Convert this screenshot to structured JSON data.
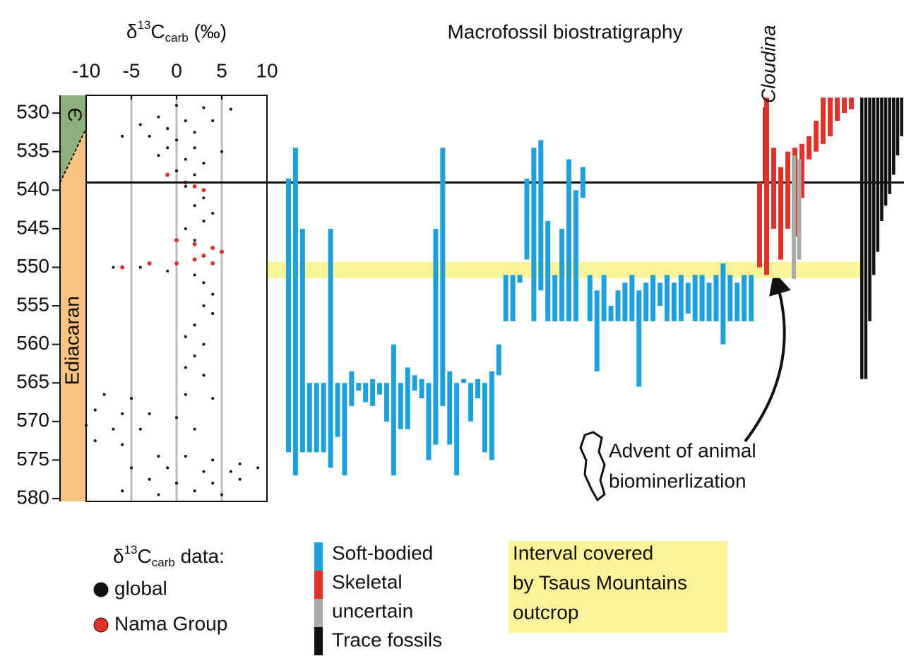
{
  "chart_data": {
    "type": "stratigraphic",
    "title": "Macrofossil biostratigraphy",
    "x_label": {
      "delta": "δ",
      "sup": "13",
      "base": "C",
      "sub": "carb",
      "unit": " (‰)"
    },
    "xlim": [
      -10,
      10
    ],
    "xticks": [
      -10,
      -5,
      0,
      5,
      10
    ],
    "grid_x": [
      -5,
      0,
      5
    ],
    "ylim": [
      527.7,
      580
    ],
    "yticks": [
      530,
      535,
      540,
      545,
      550,
      555,
      560,
      565,
      570,
      575,
      580
    ],
    "periods": [
      {
        "name": "Є",
        "color": "#8fae7e"
      },
      {
        "name": "Ediacaran",
        "color": "#f9c482"
      }
    ],
    "period_boundary": [
      539,
      532
    ],
    "boundary_line": 539,
    "highlight": {
      "range": [
        549.3,
        551.4
      ],
      "color": "#fbf39a",
      "label": [
        "Interval covered",
        "by Tsaus Mountains",
        "outcrop"
      ]
    },
    "scatter_legend_title": {
      "delta": "δ",
      "sup": "13",
      "base": "C",
      "sub": "carb",
      "unit": " data:"
    },
    "series": [
      {
        "name": "global",
        "color": "#111111",
        "points": [
          [
            0,
            529
          ],
          [
            3,
            529.3
          ],
          [
            6,
            529.5
          ],
          [
            -2,
            530.5
          ],
          [
            1,
            531
          ],
          [
            4,
            531
          ],
          [
            -4,
            531.5
          ],
          [
            -1,
            532
          ],
          [
            2,
            532.5
          ],
          [
            -6,
            533
          ],
          [
            -3,
            533
          ],
          [
            0,
            533.5
          ],
          [
            -1,
            534.5
          ],
          [
            2,
            534.5
          ],
          [
            5,
            535
          ],
          [
            -2,
            535.5
          ],
          [
            1,
            536
          ],
          [
            3,
            536.5
          ],
          [
            0,
            537.5
          ],
          [
            2,
            538
          ],
          [
            1,
            539.5
          ],
          [
            3,
            541
          ],
          [
            2,
            542
          ],
          [
            4,
            543
          ],
          [
            3,
            544
          ],
          [
            1,
            545
          ],
          [
            2,
            546.5
          ],
          [
            4,
            547.5
          ],
          [
            -7,
            550
          ],
          [
            -4,
            550
          ],
          [
            -1,
            550.5
          ],
          [
            2,
            551
          ],
          [
            3,
            552
          ],
          [
            4,
            553.5
          ],
          [
            3,
            555
          ],
          [
            4,
            556
          ],
          [
            2,
            557.5
          ],
          [
            1,
            559
          ],
          [
            3,
            560
          ],
          [
            2,
            561.5
          ],
          [
            1,
            563
          ],
          [
            3,
            564
          ],
          [
            -8,
            566.5
          ],
          [
            -5,
            567
          ],
          [
            1,
            566.5
          ],
          [
            4,
            567
          ],
          [
            -9,
            568.5
          ],
          [
            -6,
            569
          ],
          [
            -3,
            569
          ],
          [
            0,
            569.5
          ],
          [
            -10,
            570.5
          ],
          [
            -7,
            571
          ],
          [
            -4,
            571
          ],
          [
            2,
            571
          ],
          [
            -9,
            572.5
          ],
          [
            -6,
            573
          ],
          [
            -2,
            574.5
          ],
          [
            1,
            574.5
          ],
          [
            4,
            575
          ],
          [
            7,
            575.5
          ],
          [
            -5,
            576
          ],
          [
            -1,
            576
          ],
          [
            3,
            576.5
          ],
          [
            6,
            576.5
          ],
          [
            9,
            576
          ],
          [
            -3,
            577.5
          ],
          [
            0,
            578
          ],
          [
            4,
            578
          ],
          [
            7,
            577.5
          ],
          [
            -6,
            579
          ],
          [
            -2,
            579.5
          ],
          [
            2,
            579
          ],
          [
            5,
            579.5
          ]
        ]
      },
      {
        "name": "Nama Group",
        "color": "#e0322a",
        "points": [
          [
            -1,
            538
          ],
          [
            1,
            539
          ],
          [
            2,
            539.5
          ],
          [
            3,
            540
          ],
          [
            0,
            546.5
          ],
          [
            2,
            547
          ],
          [
            4,
            547.5
          ],
          [
            5,
            548
          ],
          [
            3,
            548.5
          ],
          [
            -6,
            550
          ],
          [
            -3,
            549.5
          ],
          [
            0,
            549.5
          ],
          [
            2,
            549
          ],
          [
            4,
            549.5
          ]
        ]
      }
    ],
    "groups": [
      {
        "name": "Soft-bodied",
        "color": "#1ea0dc",
        "ranges": [
          [
            538.5,
            574
          ],
          [
            534.5,
            577
          ],
          [
            545,
            574
          ],
          [
            565,
            574
          ],
          [
            565,
            574
          ],
          [
            565,
            574
          ],
          [
            545,
            576
          ],
          [
            565,
            572
          ],
          [
            565,
            577
          ],
          [
            563.5,
            568
          ],
          [
            565,
            566
          ],
          [
            565,
            567.5
          ],
          [
            564.5,
            568
          ],
          [
            565,
            566.5
          ],
          [
            565,
            570
          ],
          [
            560,
            577
          ],
          [
            565,
            571
          ],
          [
            563,
            571
          ],
          [
            564,
            566
          ],
          [
            564.5,
            567
          ],
          [
            565,
            575
          ],
          [
            545,
            573
          ],
          [
            534.5,
            568
          ],
          [
            563.5,
            573
          ],
          [
            565,
            577
          ],
          [
            564.5,
            565
          ],
          [
            565,
            570
          ],
          [
            564.5,
            567
          ],
          [
            565,
            574
          ],
          [
            563.5,
            575
          ],
          [
            560,
            564
          ],
          [
            551,
            557
          ],
          [
            551,
            557
          ],
          [
            551,
            552
          ],
          [
            538.5,
            549
          ],
          [
            534.5,
            557
          ],
          [
            533.5,
            553
          ],
          [
            544,
            557
          ],
          [
            551,
            557
          ],
          [
            545,
            557
          ],
          [
            536,
            557
          ],
          [
            540,
            557
          ],
          [
            537,
            541
          ],
          [
            551,
            557
          ],
          [
            553,
            563.5
          ],
          [
            551,
            557
          ],
          [
            555,
            557
          ],
          [
            553,
            557
          ],
          [
            552,
            557
          ],
          [
            551,
            557
          ],
          [
            553,
            565.5
          ],
          [
            552,
            557
          ],
          [
            551,
            557
          ],
          [
            552,
            555
          ],
          [
            551,
            557
          ],
          [
            552,
            557
          ],
          [
            551,
            557
          ],
          [
            552,
            556
          ],
          [
            551,
            557
          ],
          [
            551,
            557
          ],
          [
            552,
            557
          ],
          [
            551,
            557
          ],
          [
            549.5,
            560
          ],
          [
            551,
            557
          ],
          [
            552,
            557
          ],
          [
            551,
            557
          ],
          [
            551,
            557
          ]
        ]
      },
      {
        "name": "Skeletal",
        "color": "#e0322a",
        "ranges": [
          [
            539,
            550
          ],
          [
            528,
            551
          ],
          [
            534.5,
            545
          ],
          [
            537,
            549
          ],
          [
            535,
            545
          ],
          [
            534.5,
            546
          ],
          [
            534,
            541
          ],
          [
            533,
            536
          ],
          [
            531,
            535
          ],
          [
            528,
            534
          ],
          [
            528,
            533
          ],
          [
            528,
            531
          ],
          [
            528,
            530
          ],
          [
            528,
            529.5
          ]
        ]
      },
      {
        "name": "uncertain",
        "color": "#aaaaaa",
        "ranges": [
          [
            535.5,
            551.5
          ],
          [
            536,
            549
          ]
        ]
      },
      {
        "name": "Trace fossils",
        "color": "#111111",
        "ranges": [
          [
            528,
            564.5
          ],
          [
            528,
            564.5
          ],
          [
            528,
            557
          ],
          [
            528,
            551
          ],
          [
            528,
            548
          ],
          [
            528,
            544
          ],
          [
            528,
            542
          ],
          [
            528,
            540.5
          ],
          [
            528,
            538
          ],
          [
            528,
            535.5
          ],
          [
            528,
            533
          ]
        ]
      }
    ],
    "annotations": {
      "taxon": "Cloudina",
      "note": [
        "Advent of animal",
        "biominerlization"
      ]
    }
  }
}
